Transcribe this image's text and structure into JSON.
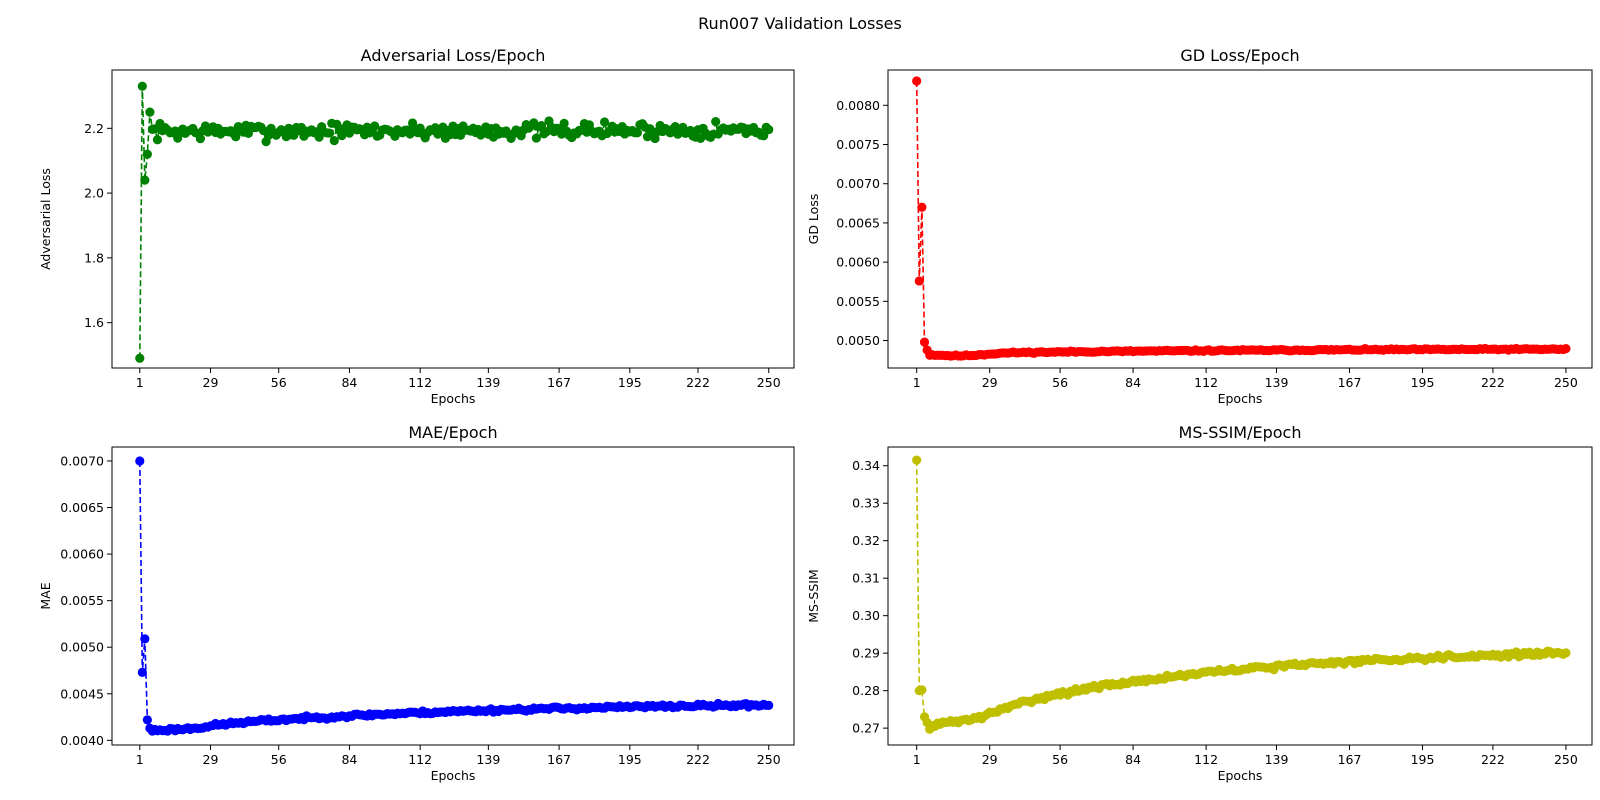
{
  "figure": {
    "suptitle": "Run007 Validation Losses"
  },
  "chart_data": [
    {
      "type": "line",
      "title": "Adversarial Loss/Epoch",
      "xlabel": "Epochs",
      "ylabel": "Adversarial Loss",
      "color": "#008000",
      "line_style": "dashed",
      "marker": "circle",
      "x_ticks": [
        1,
        29,
        56,
        84,
        112,
        139,
        167,
        195,
        222,
        250
      ],
      "y_ticks": [
        1.6,
        1.8,
        2.0,
        2.2
      ],
      "y_tick_labels": [
        "1.6",
        "1.8",
        "2.0",
        "2.2"
      ],
      "xlim": [
        -10,
        260
      ],
      "ylim": [
        1.46,
        2.38
      ],
      "x": [
        1,
        2,
        3,
        4,
        5
      ],
      "y": [
        1.49,
        2.33,
        2.04,
        2.12,
        2.25
      ],
      "tail": {
        "start": 6,
        "end": 250,
        "type": "noisy",
        "begin": 2.19,
        "final": 2.195,
        "noise": 0.025,
        "dip_depth": 0,
        "dip_pos": 0.1,
        "seed": 7
      }
    },
    {
      "type": "line",
      "title": "GD Loss/Epoch",
      "xlabel": "Epochs",
      "ylabel": "GD Loss",
      "color": "#ff0000",
      "line_style": "dashed",
      "marker": "circle",
      "x_ticks": [
        1,
        29,
        56,
        84,
        112,
        139,
        167,
        195,
        222,
        250
      ],
      "y_ticks": [
        0.005,
        0.0055,
        0.006,
        0.0065,
        0.007,
        0.0075,
        0.008
      ],
      "y_tick_labels": [
        "0.0050",
        "0.0055",
        "0.0060",
        "0.0065",
        "0.0070",
        "0.0075",
        "0.0080"
      ],
      "xlim": [
        -10,
        260
      ],
      "ylim": [
        0.00465,
        0.00845
      ],
      "x": [
        1,
        2,
        3,
        4,
        5
      ],
      "y": [
        0.00831,
        0.00576,
        0.0067,
        0.00498,
        0.00488
      ],
      "tail": {
        "start": 6,
        "end": 250,
        "type": "trend",
        "begin": 0.00483,
        "final": 0.00489,
        "noise": 1e-05,
        "dip_depth": 3e-05,
        "dip_pos": 0.05,
        "seed": 11
      }
    },
    {
      "type": "line",
      "title": "MAE/Epoch",
      "xlabel": "Epochs",
      "ylabel": "MAE",
      "color": "#0000ff",
      "line_style": "dashed",
      "marker": "circle",
      "x_ticks": [
        1,
        29,
        56,
        84,
        112,
        139,
        167,
        195,
        222,
        250
      ],
      "y_ticks": [
        0.004,
        0.0045,
        0.005,
        0.0055,
        0.006,
        0.0065,
        0.007
      ],
      "y_tick_labels": [
        "0.0040",
        "0.0045",
        "0.0050",
        "0.0055",
        "0.0060",
        "0.0065",
        "0.0070"
      ],
      "xlim": [
        -10,
        260
      ],
      "ylim": [
        0.00395,
        0.00715
      ],
      "x": [
        1,
        2,
        3,
        4,
        5
      ],
      "y": [
        0.007,
        0.00473,
        0.00509,
        0.00422,
        0.00413
      ],
      "tail": {
        "start": 6,
        "end": 250,
        "type": "trend",
        "begin": 0.00411,
        "final": 0.00438,
        "noise": 1.8e-05,
        "dip_depth": 2e-05,
        "dip_pos": 0.06,
        "seed": 23
      }
    },
    {
      "type": "line",
      "title": "MS-SSIM/Epoch",
      "xlabel": "Epochs",
      "ylabel": "MS-SSIM",
      "color": "#bfbf00",
      "line_style": "dashed",
      "marker": "circle",
      "x_ticks": [
        1,
        29,
        56,
        84,
        112,
        139,
        167,
        195,
        222,
        250
      ],
      "y_ticks": [
        0.27,
        0.28,
        0.29,
        0.3,
        0.31,
        0.32,
        0.33,
        0.34
      ],
      "y_tick_labels": [
        "0.27",
        "0.28",
        "0.29",
        "0.30",
        "0.31",
        "0.32",
        "0.33",
        "0.34"
      ],
      "xlim": [
        -10,
        260
      ],
      "ylim": [
        0.2655,
        0.345
      ],
      "x": [
        1,
        2,
        3,
        4,
        5
      ],
      "y": [
        0.3415,
        0.28,
        0.2802,
        0.273,
        0.2715
      ],
      "tail": {
        "start": 6,
        "end": 250,
        "type": "ssim",
        "begin": 0.2705,
        "final": 0.29,
        "noise": 0.0006,
        "dip_depth": 0.0015,
        "dip_pos": 0.08,
        "seed": 31
      }
    }
  ]
}
